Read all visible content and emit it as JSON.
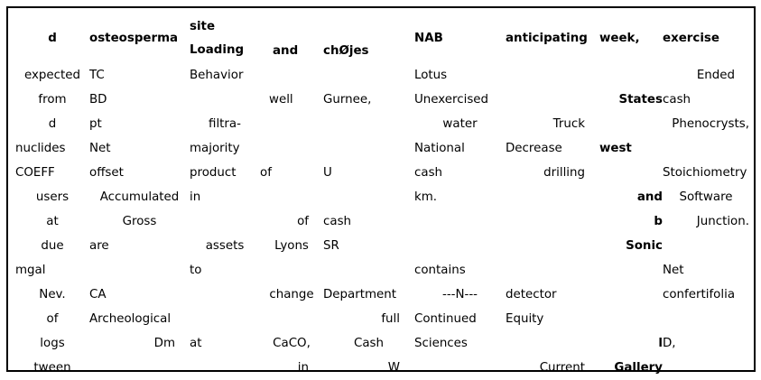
{
  "headers": [
    "d",
    "osteosperma",
    "site\nLoading",
    "and",
    "chØjes",
    "NAB",
    "anticipating",
    "week,",
    "exercise"
  ],
  "rows": [
    [
      "expected",
      "TC",
      "Behavior",
      "",
      "",
      "Lotus",
      "",
      "",
      "Ended"
    ],
    [
      "from",
      "BD",
      "",
      "well",
      "Gurnee,",
      "Unexercised",
      "",
      "States",
      "cash"
    ],
    [
      "d",
      "pt",
      "filtra-",
      "",
      "",
      "water",
      "Truck",
      "",
      "Phenocrysts,"
    ],
    [
      "nuclides",
      "Net",
      "majority",
      "",
      "",
      "National",
      "Decrease",
      "west",
      ""
    ],
    [
      "COEFF",
      "offset",
      "product",
      "of",
      "U",
      "cash",
      "drilling",
      "",
      "Stoichiometry"
    ],
    [
      "users",
      "Accumulated",
      "in",
      "",
      "",
      "km.",
      "",
      "and",
      "Software"
    ],
    [
      "at",
      "Gross",
      "",
      "of",
      "cash",
      "",
      "",
      "b",
      "Junction."
    ],
    [
      "due",
      "are",
      "assets",
      "Lyons",
      "SR",
      "",
      "",
      "Sonic",
      ""
    ],
    [
      "mgal",
      "",
      "to",
      "",
      "",
      "contains",
      "",
      "",
      "Net"
    ],
    [
      "Nev.",
      "CA",
      "",
      "change",
      "Department",
      "---N---",
      "detector",
      "",
      "confertifolia"
    ],
    [
      "of",
      "Archeological",
      "",
      "",
      "full",
      "Continued",
      "Equity",
      "",
      ""
    ],
    [
      "logs",
      "Dm",
      "at",
      "CaCO,",
      "Cash",
      "Sciences",
      "",
      "l",
      "D,"
    ],
    [
      "tween",
      "",
      "",
      "in",
      "W",
      "",
      "Current",
      "Gallery",
      ""
    ]
  ]
}
